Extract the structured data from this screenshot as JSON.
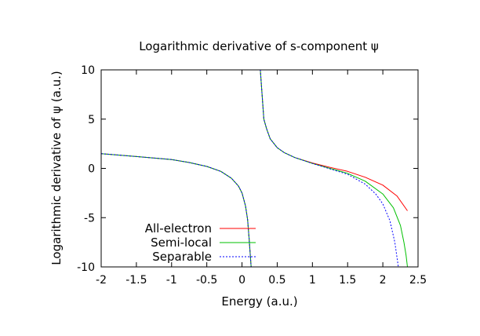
{
  "chart_data": {
    "type": "line",
    "title": "Logarithmic derivative of s-component ψ",
    "xlabel": "Energy (a.u.)",
    "ylabel": "Logarithmic derivative of ψ (a.u.)",
    "xlim": [
      -2,
      2.5
    ],
    "ylim": [
      -10,
      10
    ],
    "xticks": [
      -2,
      -1.5,
      -1,
      -0.5,
      0,
      0.5,
      1,
      1.5,
      2,
      2.5
    ],
    "yticks": [
      -10,
      -5,
      0,
      5,
      10
    ],
    "xtick_labels": [
      "-2",
      "-1.5",
      "-1",
      "-0.5",
      "0",
      "0.5",
      "1",
      "1.5",
      "2",
      "2.5"
    ],
    "ytick_labels": [
      "-10",
      "-5",
      "0",
      "5",
      "10"
    ],
    "grid": false,
    "legend_position": "bottom-left",
    "series": [
      {
        "name": "All-electron",
        "color": "#ff0000",
        "dash": "solid",
        "segments": [
          [
            [
              -2.0,
              1.5
            ],
            [
              -1.5,
              1.2
            ],
            [
              -1.0,
              0.9
            ],
            [
              -0.75,
              0.6
            ],
            [
              -0.5,
              0.2
            ],
            [
              -0.3,
              -0.3
            ],
            [
              -0.15,
              -1.0
            ],
            [
              -0.05,
              -1.8
            ],
            [
              0.0,
              -2.5
            ],
            [
              0.05,
              -3.8
            ],
            [
              0.08,
              -5.2
            ],
            [
              0.1,
              -7.0
            ],
            [
              0.12,
              -9.0
            ],
            [
              0.13,
              -10.0
            ]
          ],
          [
            [
              0.26,
              10.0
            ],
            [
              0.28,
              8.0
            ],
            [
              0.31,
              5.0
            ],
            [
              0.35,
              4.0
            ],
            [
              0.4,
              3.0
            ],
            [
              0.5,
              2.1
            ],
            [
              0.6,
              1.6
            ],
            [
              0.75,
              1.1
            ],
            [
              1.0,
              0.55
            ],
            [
              1.25,
              0.1
            ],
            [
              1.5,
              -0.3
            ],
            [
              1.75,
              -0.9
            ],
            [
              2.0,
              -1.7
            ],
            [
              2.2,
              -2.8
            ],
            [
              2.35,
              -4.3
            ]
          ]
        ]
      },
      {
        "name": "Semi-local",
        "color": "#00c000",
        "dash": "solid",
        "segments": [
          [
            [
              -2.0,
              1.5
            ],
            [
              -1.5,
              1.2
            ],
            [
              -1.0,
              0.9
            ],
            [
              -0.75,
              0.6
            ],
            [
              -0.5,
              0.2
            ],
            [
              -0.3,
              -0.3
            ],
            [
              -0.15,
              -1.0
            ],
            [
              -0.05,
              -1.8
            ],
            [
              0.0,
              -2.5
            ],
            [
              0.05,
              -3.8
            ],
            [
              0.08,
              -5.2
            ],
            [
              0.1,
              -7.0
            ],
            [
              0.12,
              -9.0
            ],
            [
              0.13,
              -10.0
            ]
          ],
          [
            [
              0.26,
              10.0
            ],
            [
              0.28,
              8.0
            ],
            [
              0.31,
              5.0
            ],
            [
              0.35,
              4.0
            ],
            [
              0.4,
              3.0
            ],
            [
              0.5,
              2.1
            ],
            [
              0.6,
              1.6
            ],
            [
              0.75,
              1.1
            ],
            [
              1.0,
              0.5
            ],
            [
              1.25,
              0.0
            ],
            [
              1.5,
              -0.5
            ],
            [
              1.75,
              -1.3
            ],
            [
              2.0,
              -2.6
            ],
            [
              2.15,
              -4.0
            ],
            [
              2.25,
              -5.8
            ],
            [
              2.3,
              -7.5
            ],
            [
              2.33,
              -8.8
            ],
            [
              2.35,
              -10.0
            ]
          ]
        ]
      },
      {
        "name": "Separable",
        "color": "#0000ff",
        "dash": "dotted",
        "segments": [
          [
            [
              -2.0,
              1.5
            ],
            [
              -1.5,
              1.2
            ],
            [
              -1.0,
              0.9
            ],
            [
              -0.75,
              0.6
            ],
            [
              -0.5,
              0.2
            ],
            [
              -0.3,
              -0.3
            ],
            [
              -0.15,
              -1.0
            ],
            [
              -0.05,
              -1.8
            ],
            [
              0.0,
              -2.5
            ],
            [
              0.05,
              -3.8
            ],
            [
              0.08,
              -5.2
            ],
            [
              0.1,
              -7.0
            ],
            [
              0.12,
              -9.0
            ],
            [
              0.13,
              -10.0
            ]
          ],
          [
            [
              0.26,
              10.0
            ],
            [
              0.28,
              8.0
            ],
            [
              0.31,
              5.0
            ],
            [
              0.35,
              4.0
            ],
            [
              0.4,
              3.0
            ],
            [
              0.5,
              2.1
            ],
            [
              0.6,
              1.6
            ],
            [
              0.75,
              1.1
            ],
            [
              1.0,
              0.5
            ],
            [
              1.25,
              -0.05
            ],
            [
              1.5,
              -0.6
            ],
            [
              1.75,
              -1.6
            ],
            [
              1.9,
              -2.6
            ],
            [
              2.0,
              -3.6
            ],
            [
              2.1,
              -5.3
            ],
            [
              2.17,
              -7.5
            ],
            [
              2.22,
              -10.0
            ]
          ]
        ]
      }
    ]
  }
}
